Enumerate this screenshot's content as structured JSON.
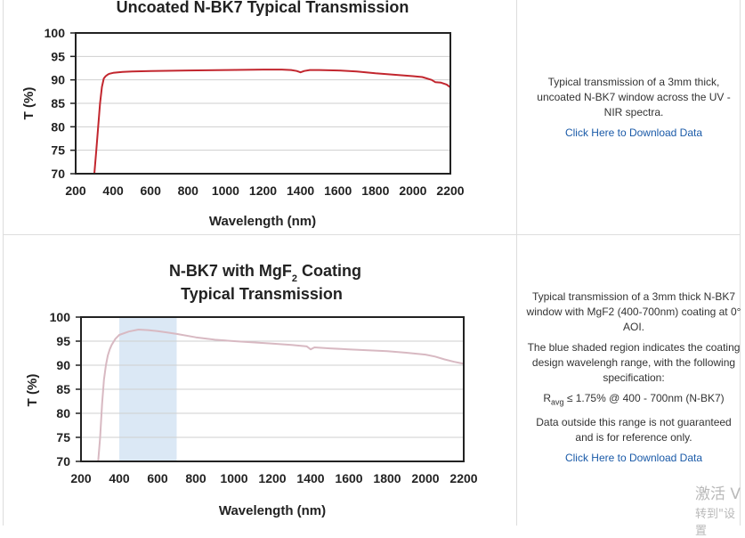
{
  "colors": {
    "uncoated_line": "#c2262e",
    "coated_line": "#d8b9c2",
    "shade": "#dbe8f5",
    "link": "#1a5aa8",
    "grid": "#cfcfcf"
  },
  "chart_data": [
    {
      "type": "line",
      "title": "Uncoated N-BK7 Typical Transmission",
      "xlabel": "Wavelength (nm)",
      "ylabel": "T (%)",
      "xlim": [
        200,
        2200
      ],
      "ylim": [
        70,
        100
      ],
      "xticks": [
        "200",
        "400",
        "600",
        "800",
        "1000",
        "1200",
        "1400",
        "1600",
        "1800",
        "2000",
        "2200"
      ],
      "yticks": [
        "100",
        "95",
        "90",
        "85",
        "80",
        "75",
        "70"
      ],
      "grid": true,
      "series": [
        {
          "x": [
            300,
            310,
            320,
            330,
            340,
            350,
            360,
            370,
            380,
            400,
            450,
            500,
            600,
            800,
            1000,
            1200,
            1300,
            1350,
            1380,
            1400,
            1420,
            1450,
            1500,
            1600,
            1700,
            1800,
            1900,
            2000,
            2050,
            2100,
            2120,
            2150,
            2180,
            2200
          ],
          "y": [
            70,
            75,
            80,
            85,
            88.5,
            90.3,
            90.8,
            91.1,
            91.3,
            91.5,
            91.7,
            91.8,
            91.9,
            92.0,
            92.1,
            92.2,
            92.2,
            92.1,
            91.9,
            91.6,
            91.9,
            92.1,
            92.1,
            92.0,
            91.8,
            91.4,
            91.1,
            90.8,
            90.6,
            90.0,
            89.5,
            89.4,
            89.0,
            88.4
          ]
        }
      ]
    },
    {
      "type": "line",
      "title_main": "N-BK7 with MgF",
      "title_sub": "2",
      "title_end": " Coating",
      "title_line2": "Typical Transmission",
      "xlabel": "Wavelength (nm)",
      "ylabel": "T (%)",
      "xlim": [
        200,
        2200
      ],
      "ylim": [
        70,
        100
      ],
      "xticks": [
        "200",
        "400",
        "600",
        "800",
        "1000",
        "1200",
        "1400",
        "1600",
        "1800",
        "2000",
        "2200"
      ],
      "yticks": [
        "100",
        "95",
        "90",
        "85",
        "80",
        "75",
        "70"
      ],
      "grid": true,
      "shaded_range": [
        400,
        700
      ],
      "series": [
        {
          "x": [
            290,
            300,
            310,
            320,
            330,
            340,
            350,
            360,
            380,
            400,
            450,
            500,
            550,
            600,
            650,
            700,
            800,
            900,
            1000,
            1200,
            1300,
            1380,
            1400,
            1420,
            1500,
            1600,
            1700,
            1800,
            1900,
            2000,
            2050,
            2100,
            2150,
            2200
          ],
          "y": [
            70,
            75,
            82,
            87,
            90,
            92,
            93.3,
            94.2,
            95.5,
            96.3,
            97.0,
            97.4,
            97.3,
            97.1,
            96.8,
            96.5,
            95.8,
            95.3,
            95.0,
            94.5,
            94.2,
            93.9,
            93.3,
            93.7,
            93.5,
            93.3,
            93.1,
            92.9,
            92.6,
            92.2,
            91.8,
            91.2,
            90.7,
            90.3
          ]
        }
      ]
    }
  ],
  "panel1": {
    "desc": "Typical transmission of a 3mm thick, uncoated N-BK7 window across the UV - NIR spectra.",
    "link": "Click Here to Download Data"
  },
  "panel2": {
    "desc1": "Typical transmission of a 3mm thick N-BK7 window with MgF2 (400-700nm) coating at 0° AOI.",
    "desc2": "The blue shaded region indicates the coating design wavelengh range, with the following specification:",
    "spec_r": "R",
    "spec_sub": "avg",
    "spec_rest": " ≤ 1.75% @ 400 - 700nm (N-BK7)",
    "desc3": "Data outside this range is not guaranteed and is for reference only.",
    "link": "Click Here to Download Data"
  },
  "watermark": {
    "line1": "激活 V",
    "line2": "转到\"设置"
  }
}
